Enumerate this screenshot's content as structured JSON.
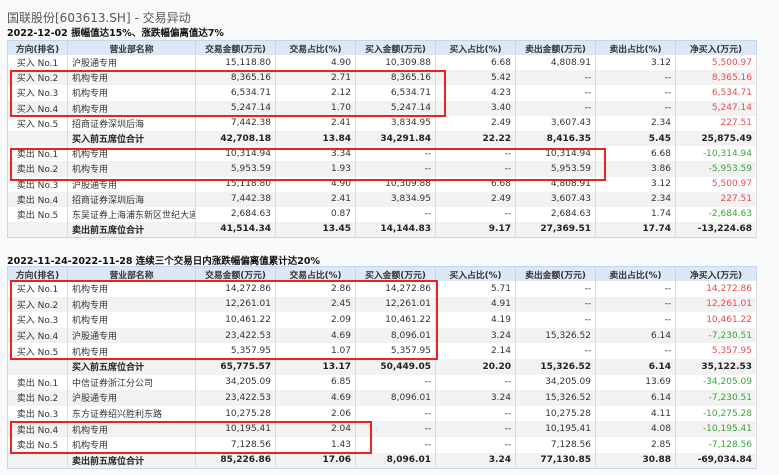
{
  "title": "国联股份[603613.SH] - 交易异动",
  "colors": {
    "positive": "#f04a4a",
    "negative": "#3ca53c",
    "highlight_box": "#f02020"
  },
  "columns": [
    "方向(排名)",
    "营业部名称",
    "交易金额(万元)",
    "交易占比(%)",
    "买入金额(万元)",
    "买入占比(%)",
    "卖出金额(万元)",
    "卖出占比(%)",
    "净买入(万元)"
  ],
  "tables": [
    {
      "subtitle": "2022-12-02 振幅值达15%、涨跌幅偏离值达7%",
      "rows": [
        {
          "dir": "买入 No.1",
          "name": "沪股通专用",
          "vals": [
            "15,118.80",
            "4.90",
            "10,309.88",
            "6.68",
            "4,808.91",
            "3.12"
          ],
          "net": "5,500.97"
        },
        {
          "dir": "买入 No.2",
          "name": "机构专用",
          "vals": [
            "8,365.16",
            "2.71",
            "8,365.16",
            "5.42",
            "--",
            "--"
          ],
          "net": "8,365.16"
        },
        {
          "dir": "买入 No.3",
          "name": "机构专用",
          "vals": [
            "6,534.71",
            "2.12",
            "6,534.71",
            "4.23",
            "--",
            "--"
          ],
          "net": "6,534.71"
        },
        {
          "dir": "买入 No.4",
          "name": "机构专用",
          "vals": [
            "5,247.14",
            "1.70",
            "5,247.14",
            "3.40",
            "--",
            "--"
          ],
          "net": "5,247.14"
        },
        {
          "dir": "买入 No.5",
          "name": "招商证券深圳后海",
          "vals": [
            "7,442.38",
            "2.41",
            "3,834.95",
            "2.49",
            "3,607.43",
            "2.34"
          ],
          "net": "227.51"
        },
        {
          "dir": "",
          "name": "买入前五席位合计",
          "vals": [
            "42,708.18",
            "13.84",
            "34,291.84",
            "22.22",
            "8,416.35",
            "5.45"
          ],
          "net": "25,875.49",
          "total": true
        },
        {
          "dir": "卖出 No.1",
          "name": "机构专用",
          "vals": [
            "10,314.94",
            "3.34",
            "--",
            "--",
            "10,314.94",
            "6.68"
          ],
          "net": "-10,314.94"
        },
        {
          "dir": "卖出 No.2",
          "name": "机构专用",
          "vals": [
            "5,953.59",
            "1.93",
            "--",
            "--",
            "5,953.59",
            "3.86"
          ],
          "net": "-5,953.59"
        },
        {
          "dir": "卖出 No.3",
          "name": "沪股通专用",
          "vals": [
            "15,118.80",
            "4.90",
            "10,309.88",
            "6.68",
            "4,808.91",
            "3.12"
          ],
          "net": "5,500.97"
        },
        {
          "dir": "卖出 No.4",
          "name": "招商证券深圳后海",
          "vals": [
            "7,442.38",
            "2.41",
            "3,834.95",
            "2.49",
            "3,607.43",
            "2.34"
          ],
          "net": "227.51"
        },
        {
          "dir": "卖出 No.5",
          "name": "东吴证券上海浦东新区世纪大道",
          "vals": [
            "2,684.63",
            "0.87",
            "--",
            "--",
            "2,684.63",
            "1.74"
          ],
          "net": "-2,684.63"
        },
        {
          "dir": "",
          "name": "卖出前五席位合计",
          "vals": [
            "41,514.34",
            "13.45",
            "14,144.83",
            "9.17",
            "27,369.51",
            "17.74"
          ],
          "net": "-13,224.68",
          "total": true
        }
      ]
    },
    {
      "subtitle": "2022-11-24-2022-11-28 连续三个交易日内涨跌幅偏离值累计达20%",
      "rows": [
        {
          "dir": "买入 No.1",
          "name": "机构专用",
          "vals": [
            "14,272.86",
            "2.86",
            "14,272.86",
            "5.71",
            "--",
            "--"
          ],
          "net": "14,272.86"
        },
        {
          "dir": "买入 No.2",
          "name": "机构专用",
          "vals": [
            "12,261.01",
            "2.45",
            "12,261.01",
            "4.91",
            "--",
            "--"
          ],
          "net": "12,261.01"
        },
        {
          "dir": "买入 No.3",
          "name": "机构专用",
          "vals": [
            "10,461.22",
            "2.09",
            "10,461.22",
            "4.19",
            "--",
            "--"
          ],
          "net": "10,461.22"
        },
        {
          "dir": "买入 No.4",
          "name": "沪股通专用",
          "vals": [
            "23,422.53",
            "4.69",
            "8,096.01",
            "3.24",
            "15,326.52",
            "6.14"
          ],
          "net": "-7,230.51"
        },
        {
          "dir": "买入 No.5",
          "name": "机构专用",
          "vals": [
            "5,357.95",
            "1.07",
            "5,357.95",
            "2.14",
            "--",
            "--"
          ],
          "net": "5,357.95"
        },
        {
          "dir": "",
          "name": "买入前五席位合计",
          "vals": [
            "65,775.57",
            "13.17",
            "50,449.05",
            "20.20",
            "15,326.52",
            "6.14"
          ],
          "net": "35,122.53",
          "total": true
        },
        {
          "dir": "卖出 No.1",
          "name": "中信证券浙江分公司",
          "vals": [
            "34,205.09",
            "6.85",
            "--",
            "--",
            "34,205.09",
            "13.69"
          ],
          "net": "-34,205.09"
        },
        {
          "dir": "卖出 No.2",
          "name": "沪股通专用",
          "vals": [
            "23,422.53",
            "4.69",
            "8,096.01",
            "3.24",
            "15,326.52",
            "6.14"
          ],
          "net": "-7,230.51"
        },
        {
          "dir": "卖出 No.3",
          "name": "东方证券绍兴胜利东路",
          "vals": [
            "10,275.28",
            "2.06",
            "--",
            "--",
            "10,275.28",
            "4.11"
          ],
          "net": "-10,275.28"
        },
        {
          "dir": "卖出 No.4",
          "name": "机构专用",
          "vals": [
            "10,195.41",
            "2.04",
            "--",
            "--",
            "10,195.41",
            "4.08"
          ],
          "net": "-10,195.41"
        },
        {
          "dir": "卖出 No.5",
          "name": "机构专用",
          "vals": [
            "7,128.56",
            "1.43",
            "--",
            "--",
            "7,128.56",
            "2.85"
          ],
          "net": "-7,128.56"
        },
        {
          "dir": "",
          "name": "卖出前五席位合计",
          "vals": [
            "85,226.86",
            "17.06",
            "8,096.01",
            "3.24",
            "77,130.85",
            "30.88"
          ],
          "net": "-69,034.84",
          "total": true
        }
      ]
    }
  ]
}
